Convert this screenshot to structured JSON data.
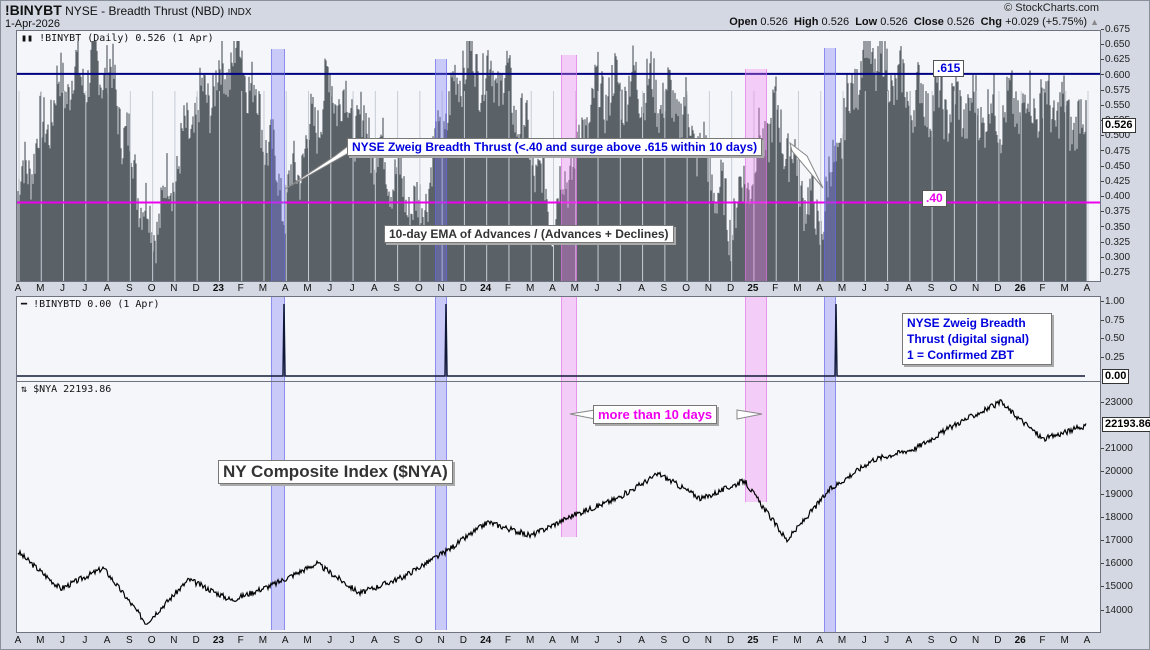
{
  "header": {
    "symbol": "!BINYBT",
    "description": "NYSE - Breadth Thrust (NBD)",
    "exchange": "INDX",
    "date": "1-Apr-2026",
    "brand": "© StockCharts.com",
    "ohlc": {
      "open_label": "Open",
      "open": "0.526",
      "high_label": "High",
      "high": "0.526",
      "low_label": "Low",
      "low": "0.526",
      "close_label": "Close",
      "close": "0.526",
      "chg_label": "Chg",
      "chg": "+0.029 (+5.75%)",
      "direction_icon": "triangle-up-icon"
    }
  },
  "colors": {
    "bars": "#5a6268",
    "line_615": "#000080",
    "line_40": "#ee00ee",
    "band_blue": "#8080f0",
    "band_pink": "#f090f0",
    "annotation_blue": "#0000dd",
    "annotation_pink": "#ee00ee"
  },
  "panels": {
    "top": {
      "label": "!BINYBT (Daily) 0.526 (1 Apr)",
      "last_value": "0.526",
      "y_ticks": [
        "0.675",
        "0.650",
        "0.625",
        "0.600",
        "0.575",
        "0.550",
        "0.525",
        "0.500",
        "0.475",
        "0.450",
        "0.425",
        "0.400",
        "0.375",
        "0.350",
        "0.325",
        "0.300",
        "0.275"
      ],
      "level_615_label": ".615",
      "level_40_label": ".40",
      "annotation_zbt": "NYSE Zweig Breadth Thrust (<.40 and surge above .615 within 10 days)",
      "annotation_ema": "10-day EMA of Advances / (Advances + Declines)"
    },
    "middle": {
      "label": "!BINYBTD 0.00 (1 Apr)",
      "last_value": "0.00",
      "y_ticks": [
        "1.00",
        "0.75",
        "0.50",
        "0.25"
      ],
      "annotation_line1": "NYSE Zweig Breadth",
      "annotation_line2": "Thrust (digital signal)",
      "annotation_line3": "1 = Confirmed ZBT"
    },
    "bottom": {
      "label": "$NYA 22193.86",
      "last_value": "22193.86",
      "y_ticks": [
        "23000",
        "21000",
        "20000",
        "19000",
        "18000",
        "17000",
        "16000",
        "15000",
        "14000"
      ],
      "annotation_index": "NY Composite Index ($NYA)",
      "annotation_days": "more than 10 days"
    }
  },
  "x_axis": {
    "labels": [
      "A",
      "M",
      "J",
      "J",
      "A",
      "S",
      "O",
      "N",
      "D",
      "23",
      "F",
      "M",
      "A",
      "M",
      "J",
      "J",
      "A",
      "S",
      "O",
      "N",
      "D",
      "24",
      "F",
      "M",
      "A",
      "M",
      "J",
      "J",
      "A",
      "S",
      "O",
      "N",
      "D",
      "25",
      "F",
      "M",
      "A",
      "M",
      "J",
      "J",
      "A",
      "S",
      "O",
      "N",
      "D",
      "26",
      "F",
      "M",
      "A"
    ],
    "year_labels": [
      "23",
      "24",
      "25",
      "26"
    ]
  },
  "chart_data": [
    {
      "type": "bar",
      "title": "!BINYBT NYSE - Breadth Thrust (NBD) — 10-day EMA of Advances / (Advances + Declines)",
      "xlabel": "Apr 2022 – Apr 2026 (daily)",
      "ylabel": "",
      "ylim": [
        0.27,
        0.68
      ],
      "reference_lines": [
        {
          "value": 0.615,
          "label": ".615",
          "color": "#000080"
        },
        {
          "value": 0.4,
          "label": ".40",
          "color": "#ee00ee"
        }
      ],
      "last": 0.526,
      "x": [
        "2022-04",
        "2022-06",
        "2022-08",
        "2022-10",
        "2022-12",
        "2023-02",
        "2023-04",
        "2023-06",
        "2023-08",
        "2023-10",
        "2023-12",
        "2024-02",
        "2024-04",
        "2024-06",
        "2024-08",
        "2024-10",
        "2024-12",
        "2025-02",
        "2025-04",
        "2025-06",
        "2025-08",
        "2025-10",
        "2025-12",
        "2026-02",
        "2026-04"
      ],
      "values": [
        0.42,
        0.6,
        0.63,
        0.35,
        0.55,
        0.66,
        0.4,
        0.6,
        0.5,
        0.38,
        0.64,
        0.6,
        0.38,
        0.58,
        0.6,
        0.55,
        0.37,
        0.55,
        0.36,
        0.66,
        0.58,
        0.56,
        0.55,
        0.57,
        0.526
      ]
    },
    {
      "type": "line",
      "title": "!BINYBTD — NYSE Zweig Breadth Thrust (digital signal), 1 = Confirmed ZBT",
      "ylim": [
        0,
        1
      ],
      "signals": [
        {
          "date": "2023-03/04",
          "value": 1
        },
        {
          "date": "2023-11",
          "value": 1
        },
        {
          "date": "2025-04/05",
          "value": 1
        }
      ],
      "last": 0.0
    },
    {
      "type": "line",
      "title": "$NYA NY Composite Index",
      "ylim": [
        13500,
        23800
      ],
      "x": [
        "2022-04",
        "2022-06",
        "2022-08",
        "2022-10",
        "2022-12",
        "2023-03",
        "2023-05",
        "2023-07",
        "2023-10",
        "2023-11",
        "2024-01",
        "2024-03",
        "2024-04",
        "2024-07",
        "2024-09",
        "2024-11",
        "2024-12",
        "2025-02",
        "2025-04",
        "2025-06",
        "2025-09",
        "2025-11",
        "2026-01",
        "2026-02",
        "2026-03",
        "2026-04"
      ],
      "values": [
        16700,
        15100,
        16000,
        13600,
        15500,
        14600,
        15300,
        16200,
        14900,
        15600,
        16700,
        18000,
        17400,
        18300,
        19000,
        20100,
        19000,
        19800,
        17200,
        19400,
        20700,
        21200,
        22300,
        23200,
        21600,
        22193.86
      ],
      "last": 22193.86
    }
  ]
}
